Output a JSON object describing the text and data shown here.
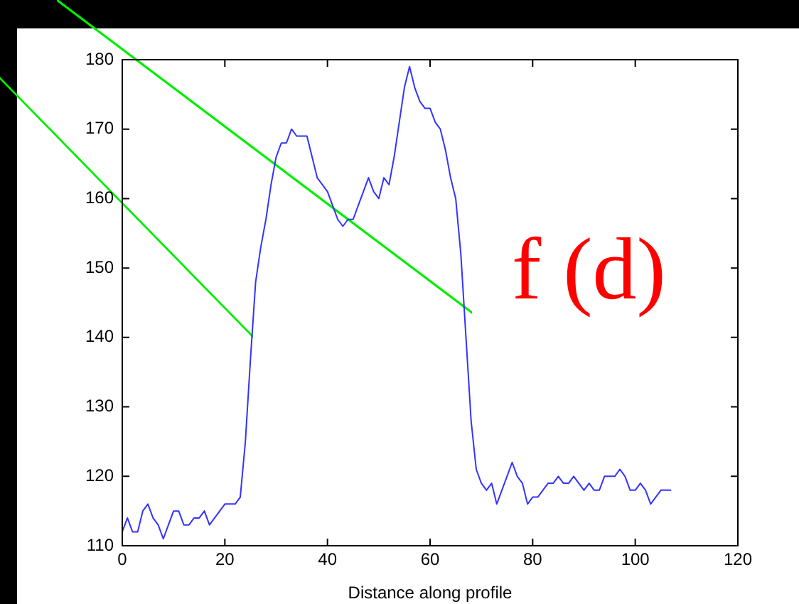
{
  "chart_data": {
    "type": "line",
    "xlabel": "Distance along profile",
    "x": [
      0,
      1,
      2,
      3,
      4,
      5,
      6,
      7,
      8,
      9,
      10,
      11,
      12,
      13,
      14,
      15,
      16,
      17,
      18,
      19,
      20,
      21,
      22,
      23,
      24,
      25,
      26,
      27,
      28,
      29,
      30,
      31,
      32,
      33,
      34,
      35,
      36,
      37,
      38,
      39,
      40,
      41,
      42,
      43,
      44,
      45,
      46,
      47,
      48,
      49,
      50,
      51,
      52,
      53,
      54,
      55,
      56,
      57,
      58,
      59,
      60,
      61,
      62,
      63,
      64,
      65,
      66,
      67,
      68,
      69,
      70,
      71,
      72,
      73,
      74,
      75,
      76,
      77,
      78,
      79,
      80,
      81,
      82,
      83,
      84,
      85,
      86,
      87,
      88,
      89,
      90,
      91,
      92,
      93,
      94,
      95,
      96,
      97,
      98,
      99,
      100,
      101,
      102,
      103,
      104,
      105,
      106,
      107
    ],
    "series": [
      {
        "color": "#3333ff",
        "values": [
          112,
          114,
          112,
          112,
          115,
          116,
          114,
          113,
          111,
          113,
          115,
          115,
          113,
          113,
          114,
          114,
          115,
          113,
          114,
          115,
          116,
          116,
          116,
          117,
          125,
          137,
          148,
          153,
          157,
          162,
          166,
          168,
          168,
          170,
          169,
          169,
          169,
          166,
          163,
          162,
          161,
          159,
          157,
          156,
          157,
          157,
          159,
          161,
          163,
          161,
          160,
          163,
          162,
          166,
          171,
          176,
          179,
          176,
          174,
          173,
          173,
          171,
          170,
          167,
          163,
          160,
          152,
          140,
          128,
          121,
          119,
          118,
          119,
          116,
          118,
          120,
          122,
          120,
          119,
          116,
          117,
          117,
          118,
          119,
          119,
          120,
          119,
          119,
          120,
          119,
          118,
          119,
          118,
          118,
          120,
          120,
          120,
          121,
          120,
          118,
          118,
          119,
          118,
          116,
          117,
          118,
          118,
          118
        ]
      }
    ],
    "xlim": [
      0,
      120
    ],
    "xticks": [
      0,
      20,
      40,
      60,
      80,
      100,
      120
    ],
    "ylim": [
      110,
      180
    ],
    "yticks": [
      110,
      120,
      130,
      140,
      150,
      160,
      170,
      180
    ],
    "grid": false,
    "legend": false,
    "marker": "none",
    "line_style": "solid",
    "annotations": [
      "f (d)"
    ]
  }
}
